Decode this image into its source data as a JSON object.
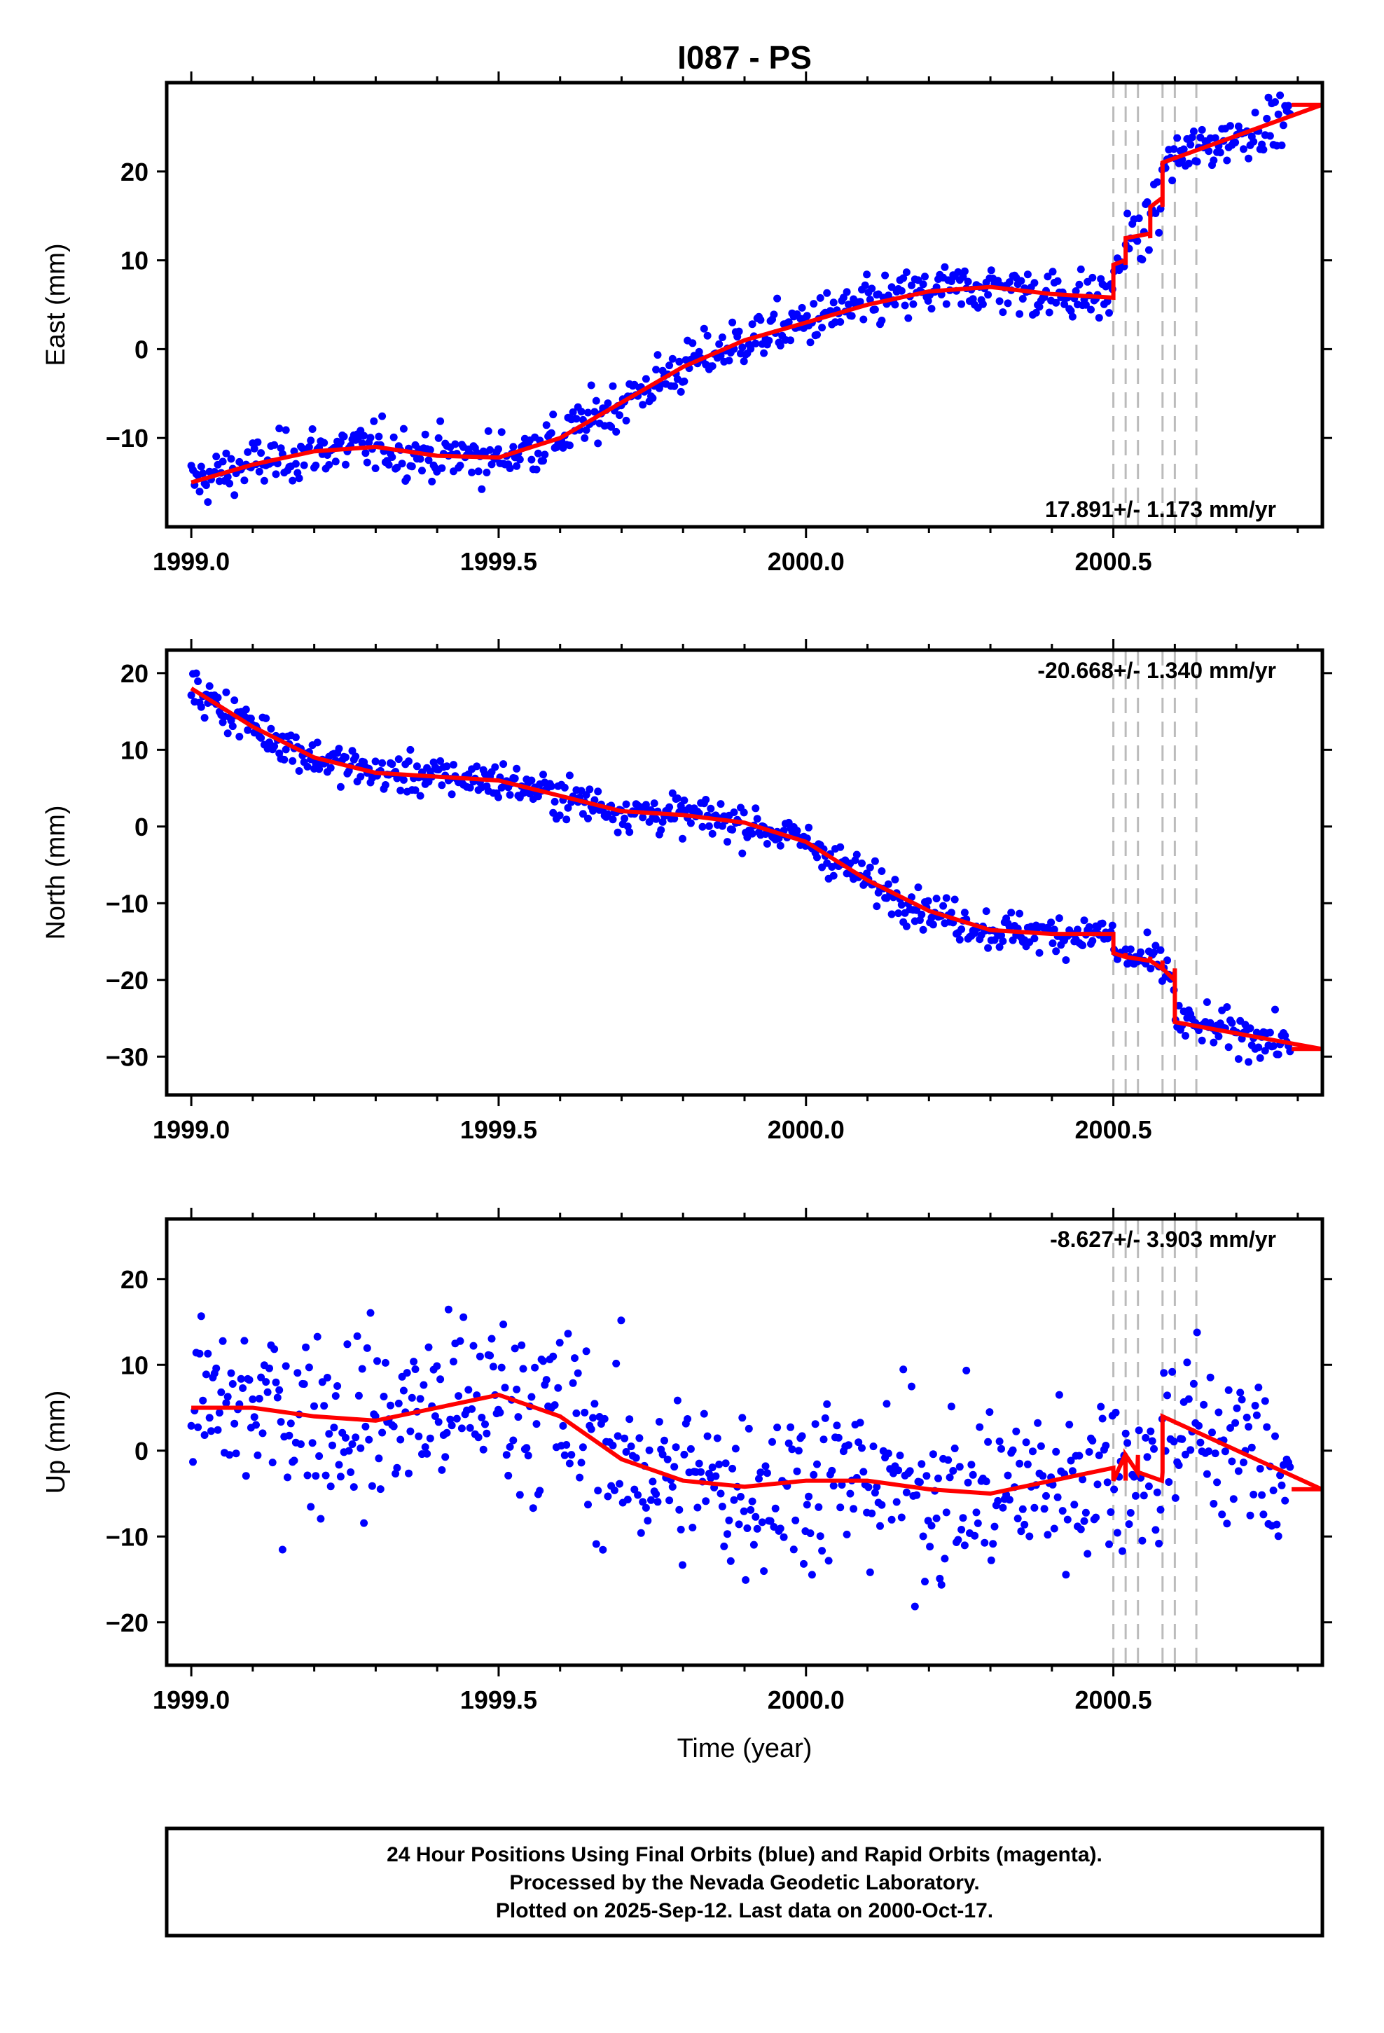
{
  "chart_data": {
    "type": "scatter",
    "title": "I087 - PS",
    "xlabel": "Time (year)",
    "xlim": [
      1998.96,
      2000.84
    ],
    "x_ticks": [
      "1999.0",
      "1999.5",
      "2000.0",
      "2000.5"
    ],
    "point_color": "#0000ff",
    "model_color": "#ff0000",
    "event_line_color": "#bbbbbb",
    "event_epochs": [
      2000.5,
      2000.52,
      2000.54,
      2000.58,
      2000.6,
      2000.635
    ],
    "panels": [
      {
        "ylabel": "East (mm)",
        "ylim": [
          -20,
          30
        ],
        "y_ticks": [
          20,
          10,
          0,
          -10
        ],
        "rate_text": "17.891+/- 1.173 mm/yr",
        "rate_position": "bottom-right",
        "model": [
          [
            1999.0,
            -15
          ],
          [
            1999.1,
            -13
          ],
          [
            1999.2,
            -11.5
          ],
          [
            1999.3,
            -11
          ],
          [
            1999.4,
            -12
          ],
          [
            1999.5,
            -12.2
          ],
          [
            1999.6,
            -10
          ],
          [
            1999.7,
            -6
          ],
          [
            1999.8,
            -2
          ],
          [
            1999.9,
            1
          ],
          [
            2000.0,
            3
          ],
          [
            2000.1,
            5
          ],
          [
            2000.2,
            6.5
          ],
          [
            2000.3,
            7
          ],
          [
            2000.4,
            6.2
          ],
          [
            2000.5,
            5.8
          ]
        ],
        "model_steps": [
          [
            2000.5,
            5.8,
            8.0,
            9.5
          ],
          [
            2000.52,
            9.5,
            10.0,
            12.5
          ],
          [
            2000.56,
            12.5,
            13.0,
            16.0
          ],
          [
            2000.58,
            16.0,
            17.0,
            21.0
          ],
          [
            2000.84,
            21.0,
            27.5,
            null
          ]
        ],
        "noise": 2.0
      },
      {
        "ylabel": "North (mm)",
        "ylim": [
          -35,
          23
        ],
        "y_ticks": [
          20,
          10,
          0,
          -10,
          -20,
          -30
        ],
        "rate_text": "-20.668+/- 1.340 mm/yr",
        "rate_position": "top-right",
        "model": [
          [
            1999.0,
            18
          ],
          [
            1999.1,
            13
          ],
          [
            1999.2,
            9
          ],
          [
            1999.3,
            7
          ],
          [
            1999.4,
            6.5
          ],
          [
            1999.5,
            6
          ],
          [
            1999.6,
            4
          ],
          [
            1999.7,
            2
          ],
          [
            1999.8,
            1.5
          ],
          [
            1999.9,
            0.5
          ],
          [
            2000.0,
            -2
          ],
          [
            2000.1,
            -7
          ],
          [
            2000.2,
            -11
          ],
          [
            2000.3,
            -13.5
          ],
          [
            2000.4,
            -14
          ],
          [
            2000.5,
            -14
          ]
        ],
        "model_steps": [
          [
            2000.5,
            -14,
            -15.5,
            -16.5
          ],
          [
            2000.52,
            -16.5,
            -17.0,
            -17.0
          ],
          [
            2000.56,
            -17.0,
            -17.5,
            -17.5
          ],
          [
            2000.58,
            -17.5,
            -18.5,
            -18.5
          ],
          [
            2000.6,
            -18.5,
            -20.0,
            -25.5
          ],
          [
            2000.84,
            -25.5,
            -29.0,
            null
          ]
        ],
        "noise": 1.8
      },
      {
        "ylabel": "Up (mm)",
        "ylim": [
          -25,
          27
        ],
        "y_ticks": [
          20,
          10,
          0,
          -10,
          -20
        ],
        "rate_text": "-8.627+/- 3.903 mm/yr",
        "rate_position": "top-right",
        "model": [
          [
            1999.0,
            5
          ],
          [
            1999.1,
            5
          ],
          [
            1999.2,
            4
          ],
          [
            1999.3,
            3.5
          ],
          [
            1999.4,
            5
          ],
          [
            1999.5,
            6.5
          ],
          [
            1999.6,
            4
          ],
          [
            1999.7,
            -1
          ],
          [
            1999.8,
            -3.5
          ],
          [
            1999.9,
            -4.2
          ],
          [
            2000.0,
            -3.5
          ],
          [
            2000.1,
            -3.5
          ],
          [
            2000.2,
            -4.5
          ],
          [
            2000.3,
            -5
          ],
          [
            2000.4,
            -3.5
          ],
          [
            2000.5,
            -2
          ]
        ],
        "model_steps": [
          [
            2000.5,
            -2,
            -3.5,
            -3.5
          ],
          [
            2000.52,
            -3.5,
            -0.5,
            -0.5
          ],
          [
            2000.54,
            -0.5,
            -2.5,
            -2.5
          ],
          [
            2000.58,
            -2.5,
            -3.5,
            4.0
          ],
          [
            2000.84,
            4.0,
            -4.5,
            null
          ]
        ],
        "noise": 7.5
      }
    ]
  },
  "footer": {
    "line1": "24 Hour Positions Using Final Orbits (blue) and Rapid Orbits (magenta).",
    "line2": "Processed by the Nevada Geodetic Laboratory.",
    "line3": "Plotted on 2025-Sep-12. Last data on 2000-Oct-17."
  }
}
